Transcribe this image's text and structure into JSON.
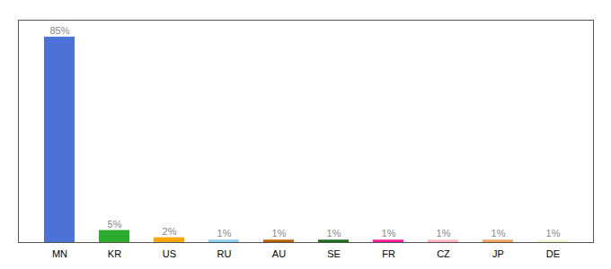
{
  "chart_data": {
    "type": "bar",
    "categories": [
      "MN",
      "KR",
      "US",
      "RU",
      "AU",
      "SE",
      "FR",
      "CZ",
      "JP",
      "DE"
    ],
    "values": [
      85,
      5,
      2,
      1,
      1,
      1,
      1,
      1,
      1,
      1
    ],
    "value_labels": [
      "85%",
      "5%",
      "2%",
      "1%",
      "1%",
      "1%",
      "1%",
      "1%",
      "1%",
      "1%"
    ],
    "colors": [
      "#4D72D6",
      "#2EAA2E",
      "#FFA500",
      "#87CEEB",
      "#B85C00",
      "#1A6B1A",
      "#FF1493",
      "#FFB6C1",
      "#F4A460",
      "#F5F5DC"
    ],
    "ylim": [
      0,
      92
    ],
    "grid": false,
    "data_labels": true,
    "tick_labels": "x"
  }
}
